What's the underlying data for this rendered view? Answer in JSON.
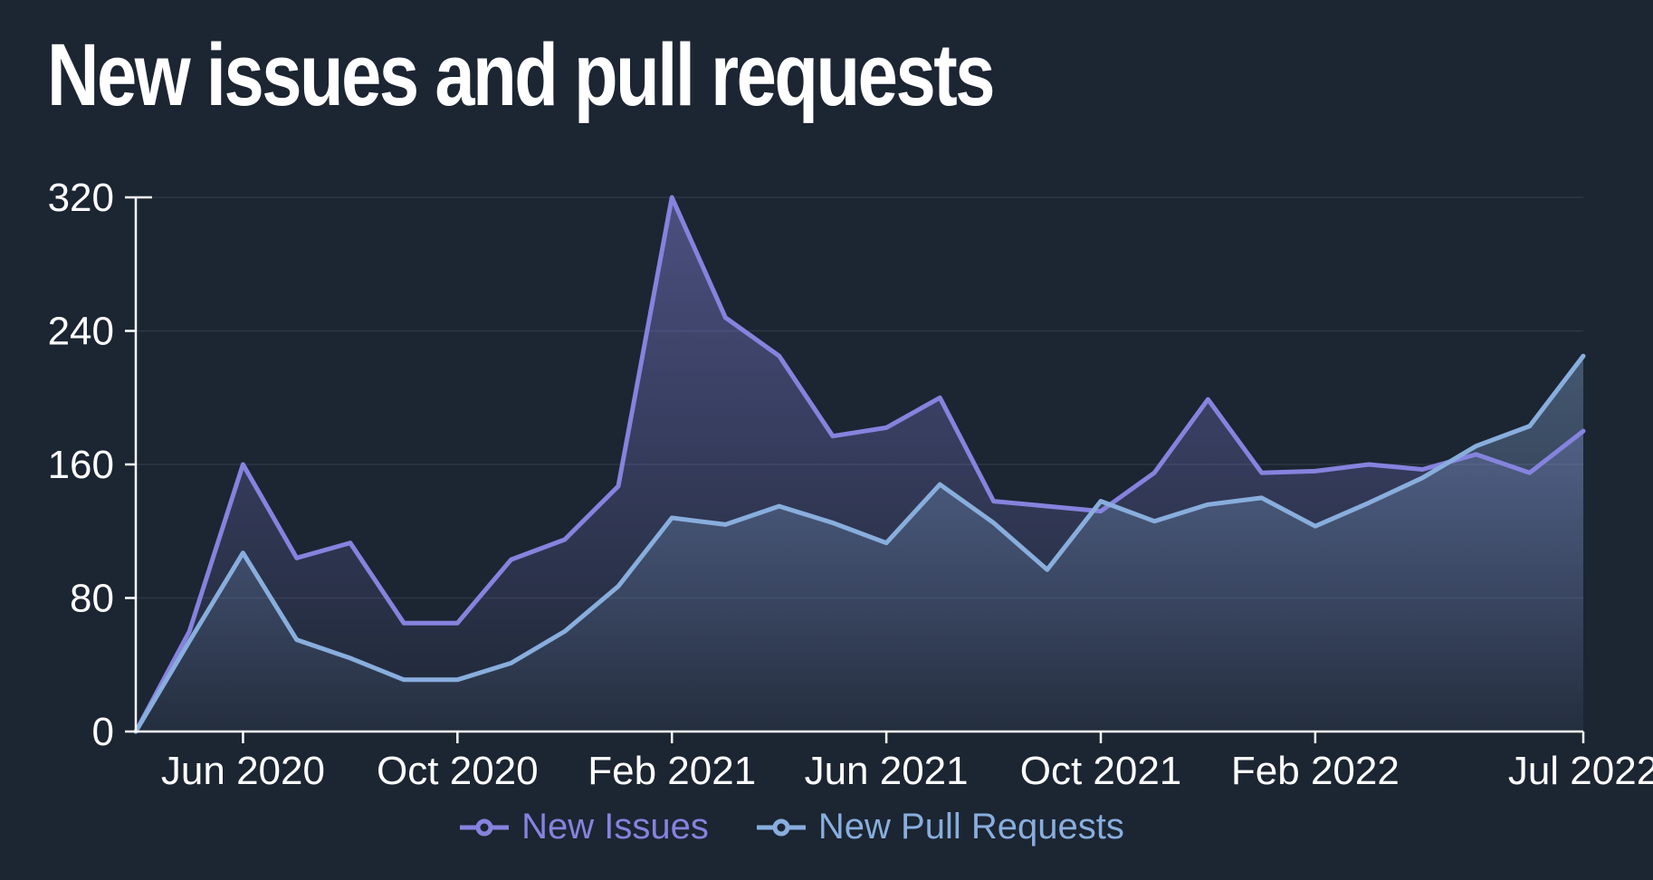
{
  "title": "New issues and pull requests",
  "colors": {
    "background": "#1c2532",
    "axis": "#ffffff",
    "tick_label": "#ffffff",
    "grid": "rgba(154,170,198,0.13)",
    "issues": "#8583de",
    "pull_requests": "#88aedd"
  },
  "legend": [
    {
      "id": "issues",
      "label": "New Issues",
      "color": "#8583de"
    },
    {
      "id": "pull_requests",
      "label": "New Pull Requests",
      "color": "#88aedd"
    }
  ],
  "chart_data": {
    "type": "area",
    "title": "New issues and pull requests",
    "xlabel": "",
    "ylabel": "",
    "ylim": [
      0,
      320
    ],
    "y_ticks": [
      0,
      80,
      160,
      240,
      320
    ],
    "grid": "horizontal",
    "legend_position": "bottom",
    "x": [
      "Apr 2020",
      "May 2020",
      "Jun 2020",
      "Jul 2020",
      "Aug 2020",
      "Sep 2020",
      "Oct 2020",
      "Nov 2020",
      "Dec 2020",
      "Jan 2021",
      "Feb 2021",
      "Mar 2021",
      "Apr 2021",
      "May 2021",
      "Jun 2021",
      "Jul 2021",
      "Aug 2021",
      "Sep 2021",
      "Oct 2021",
      "Nov 2021",
      "Dec 2021",
      "Jan 2022",
      "Feb 2022",
      "Mar 2022",
      "Apr 2022",
      "May 2022",
      "Jun 2022",
      "Jul 2022"
    ],
    "x_tick_labels": [
      {
        "index": 2,
        "label": "Jun 2020"
      },
      {
        "index": 6,
        "label": "Oct 2020"
      },
      {
        "index": 10,
        "label": "Feb 2021"
      },
      {
        "index": 14,
        "label": "Jun 2021"
      },
      {
        "index": 18,
        "label": "Oct 2021"
      },
      {
        "index": 22,
        "label": "Feb 2022"
      },
      {
        "index": 27,
        "label": "Jul 2022"
      }
    ],
    "series": [
      {
        "name": "New Issues",
        "color": "#8583de",
        "values": [
          0,
          60,
          160,
          104,
          113,
          65,
          65,
          103,
          115,
          147,
          320,
          248,
          225,
          177,
          182,
          200,
          138,
          135,
          132,
          155,
          199,
          155,
          156,
          160,
          157,
          166,
          155,
          180
        ]
      },
      {
        "name": "New Pull Requests",
        "color": "#88aedd",
        "values": [
          0,
          54,
          107,
          55,
          44,
          31,
          31,
          41,
          60,
          87,
          128,
          124,
          135,
          125,
          113,
          148,
          125,
          97,
          138,
          126,
          136,
          140,
          123,
          137,
          152,
          171,
          183,
          225
        ]
      }
    ]
  }
}
